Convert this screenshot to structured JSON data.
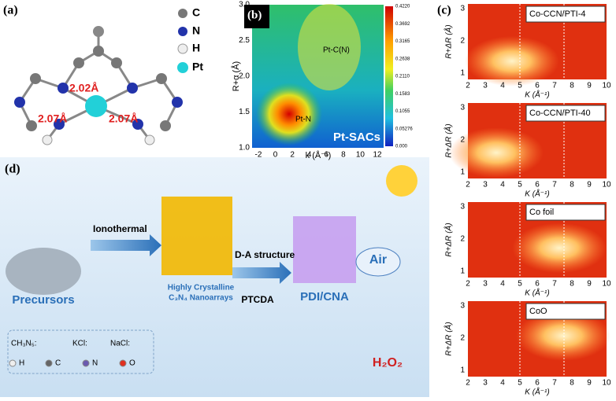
{
  "panel_a": {
    "label": "(a)",
    "legend": [
      "C",
      "N",
      "H",
      "Pt"
    ],
    "bonds": [
      "2.02Å",
      "2.07Å",
      "2.07Å"
    ]
  },
  "panel_b": {
    "label": "(b)",
    "ylabel": "R+α (Å)",
    "xlabel": "k (Å⁻¹)",
    "xticks": [
      "-2",
      "0",
      "2",
      "4",
      "6",
      "8",
      "10",
      "12"
    ],
    "yticks": [
      "1.0",
      "1.5",
      "2.0",
      "2.5",
      "3.0"
    ],
    "colorbar": [
      "0.4220",
      "0.3692",
      "0.3165",
      "0.2638",
      "0.2110",
      "0.1583",
      "0.1055",
      "0.05276",
      "0.000"
    ],
    "annotations": [
      "Pt-C(N)",
      "Pt-N"
    ],
    "sample": "Pt-SACs"
  },
  "panel_c": {
    "label": "(c)",
    "ylabel": "R+ΔR (Å)",
    "xlabel": "K (Å⁻¹)",
    "xticks": [
      "2",
      "3",
      "4",
      "5",
      "6",
      "7",
      "8",
      "9",
      "10"
    ],
    "yticks": [
      "1",
      "2",
      "3"
    ],
    "samples": [
      "Co-CCN/PTI-4",
      "Co-CCN/PTI-40",
      "Co foil",
      "CoO"
    ]
  },
  "panel_d": {
    "label": "(d)",
    "steps": [
      "Ionothermal",
      "D-A structure"
    ],
    "labels": [
      "Precursors",
      "Highly Crystalline",
      "C₃N₄ Nanoarrays",
      "PTCDA",
      "PDI/CNA",
      "Air",
      "H₂O₂"
    ],
    "legend": [
      "CH₃N₅:",
      "KCl:",
      "NaCl:",
      "H",
      "C",
      "N",
      "O"
    ]
  }
}
